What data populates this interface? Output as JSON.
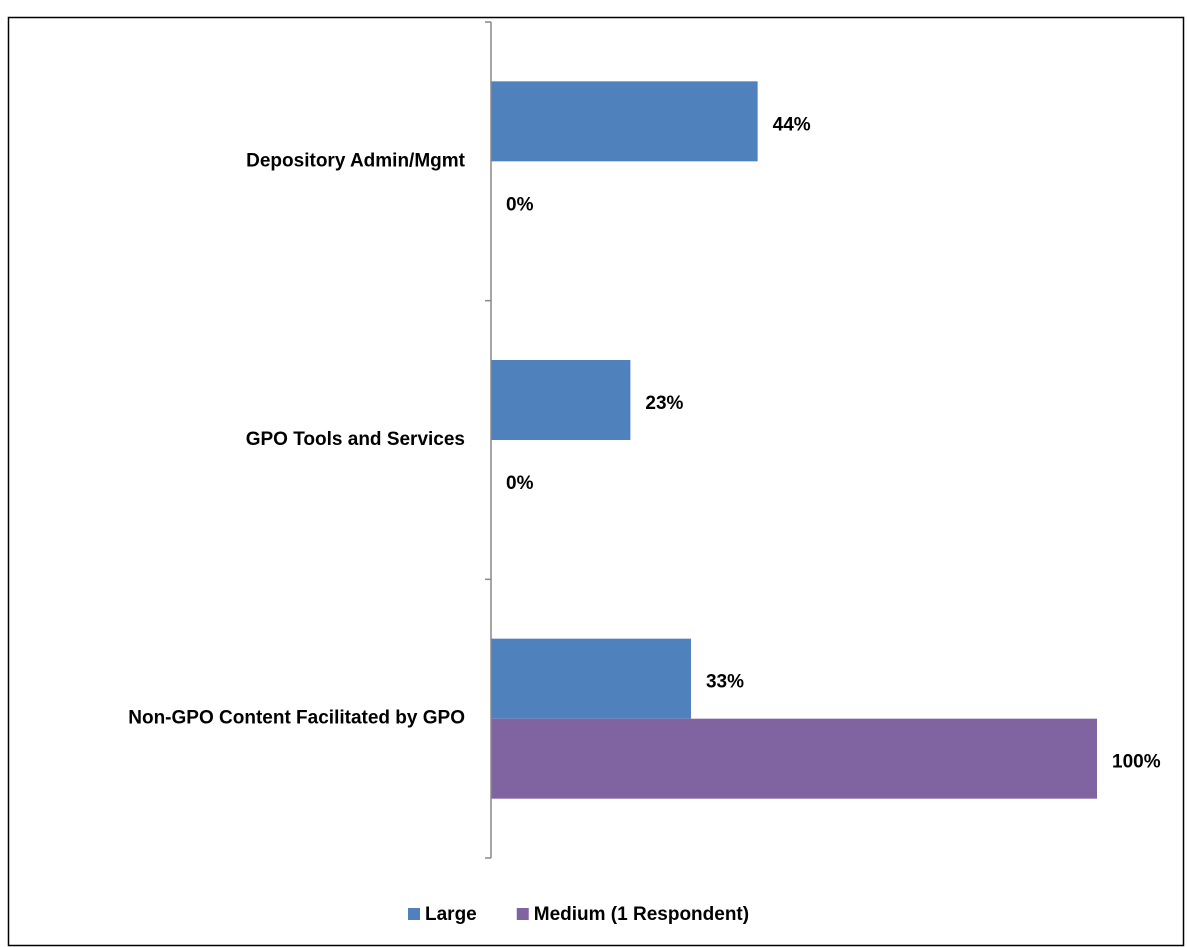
{
  "chart_data": {
    "type": "bar",
    "orientation": "horizontal",
    "categories": [
      "Depository Admin/Mgmt",
      "GPO Tools and Services",
      "Non-GPO Content Facilitated by GPO"
    ],
    "series": [
      {
        "name": "Large",
        "color": "#4f81bd",
        "values": [
          44,
          23,
          33
        ],
        "value_labels": [
          "44%",
          "23%",
          "33%"
        ]
      },
      {
        "name": "Medium (1 Respondent)",
        "color": "#8064a2",
        "values": [
          0,
          0,
          100
        ],
        "value_labels": [
          "0%",
          "0%",
          "100%"
        ]
      }
    ],
    "xlim": [
      0,
      100
    ],
    "legend": "bottom"
  }
}
